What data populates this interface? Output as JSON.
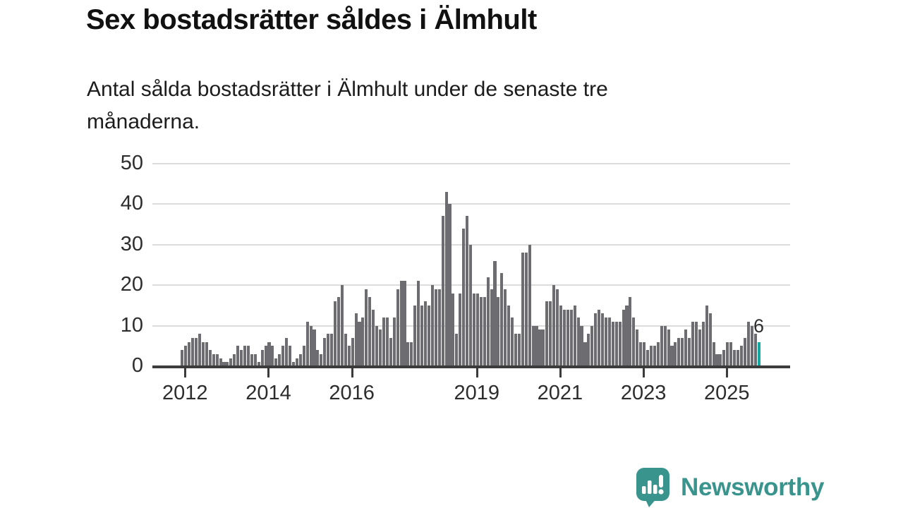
{
  "header": {
    "title": "Sex bostadsrätter såldes i Älmhult",
    "subtitle_lines": [
      "Antal sålda bostadsrätter i Älmhult under de senaste tre",
      "månaderna."
    ]
  },
  "chart_data": {
    "type": "bar",
    "title": "Sex bostadsrätter såldes i Älmhult",
    "xlabel": "",
    "ylabel": "",
    "ylim": [
      0,
      50
    ],
    "grid": true,
    "start_month": "2011-12",
    "values": [
      4,
      5,
      6,
      7,
      7,
      8,
      6,
      6,
      4,
      3,
      3,
      2,
      1,
      1,
      2,
      3,
      5,
      4,
      5,
      5,
      3,
      3,
      1,
      4,
      5,
      6,
      5,
      2,
      3,
      5,
      7,
      5,
      1,
      2,
      3,
      5,
      11,
      10,
      9,
      4,
      3,
      7,
      8,
      8,
      16,
      17,
      20,
      8,
      5,
      7,
      13,
      11,
      12,
      19,
      17,
      14,
      10,
      9,
      12,
      12,
      7,
      12,
      19,
      21,
      21,
      6,
      6,
      15,
      21,
      15,
      16,
      15,
      20,
      19,
      19,
      37,
      43,
      40,
      18,
      8,
      18,
      34,
      37,
      30,
      18,
      18,
      17,
      17,
      22,
      19,
      26,
      17,
      23,
      19,
      15,
      12,
      8,
      8,
      28,
      28,
      30,
      10,
      10,
      9,
      9,
      16,
      16,
      20,
      19,
      15,
      14,
      14,
      14,
      15,
      12,
      10,
      6,
      8,
      10,
      13,
      14,
      13,
      12,
      12,
      11,
      11,
      11,
      14,
      15,
      17,
      12,
      9,
      6,
      6,
      4,
      5,
      5,
      6,
      10,
      10,
      9,
      5,
      6,
      7,
      7,
      9,
      7,
      11,
      11,
      9,
      11,
      15,
      13,
      6,
      3,
      3,
      4,
      6,
      6,
      4,
      4,
      5,
      7,
      11,
      10,
      8,
      6
    ],
    "y_ticks": [
      0,
      10,
      20,
      30,
      40,
      50
    ],
    "x_ticks": [
      {
        "label": "2012",
        "month": "2012-01"
      },
      {
        "label": "2014",
        "month": "2014-01"
      },
      {
        "label": "2016",
        "month": "2016-01"
      },
      {
        "label": "2019",
        "month": "2019-01"
      },
      {
        "label": "2021",
        "month": "2021-01"
      },
      {
        "label": "2023",
        "month": "2023-01"
      },
      {
        "label": "2025",
        "month": "2025-01"
      }
    ],
    "highlight": {
      "month": "2025-10",
      "value": 6,
      "label": "6"
    },
    "bar_color": "#6d6c71",
    "highlight_color": "#14a8a2",
    "legend": null
  },
  "footer": {
    "brand": "Newsworthy"
  },
  "colors": {
    "background": "#ffffff",
    "grid": "#dcdcdc",
    "axis": "#3b3b3b",
    "text": "#2d2d2d",
    "brand_teal": "#38948c"
  }
}
